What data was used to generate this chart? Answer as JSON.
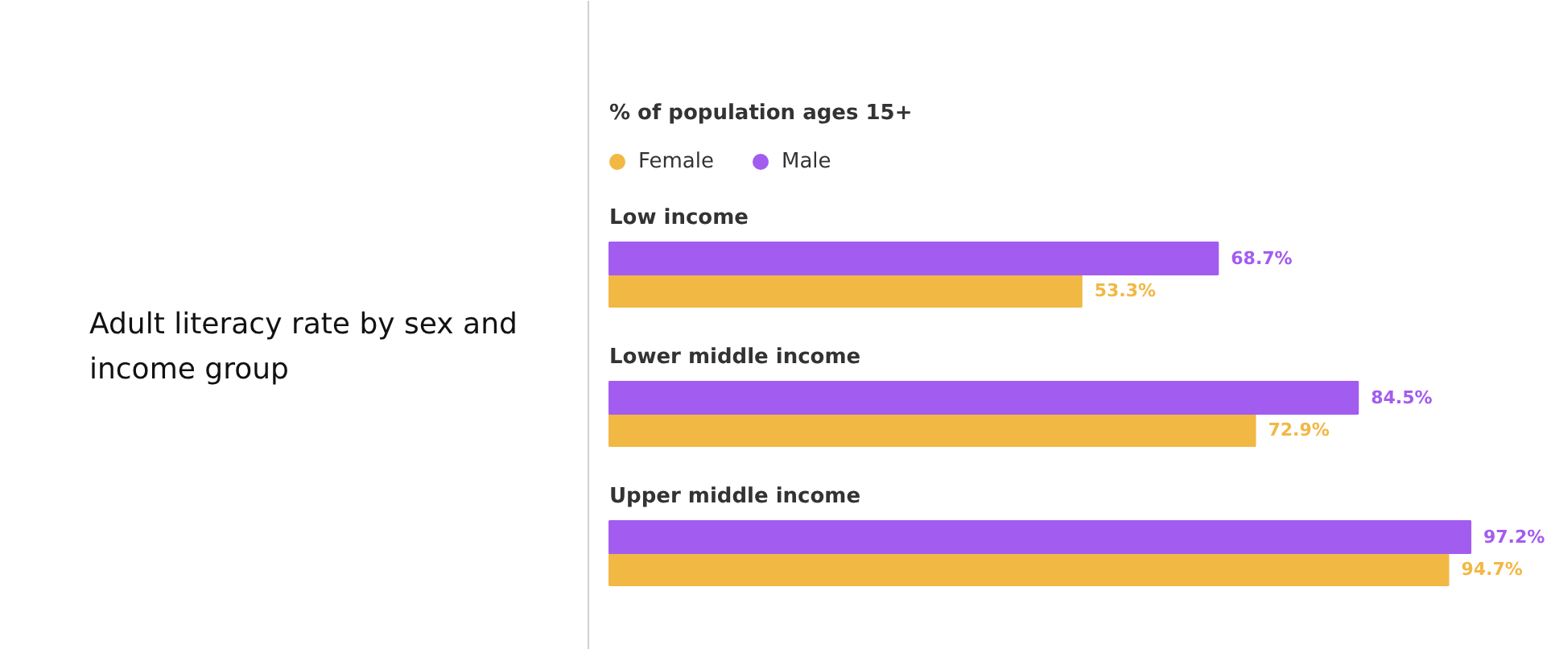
{
  "chart_data": {
    "type": "bar",
    "orientation": "horizontal",
    "title": "Adult literacy rate by sex and income group",
    "subtitle": "% of population ages 15+",
    "categories": [
      "Low income",
      "Lower middle income",
      "Upper middle income"
    ],
    "series": [
      {
        "name": "Female",
        "color": "#f2b844",
        "values": [
          53.3,
          72.9,
          94.7
        ],
        "value_labels": [
          "53.3%",
          "72.9%",
          "94.7%"
        ]
      },
      {
        "name": "Male",
        "color": "#a35cf0",
        "values": [
          68.7,
          84.5,
          97.2
        ],
        "value_labels": [
          "68.7%",
          "84.5%",
          "97.2%"
        ]
      }
    ],
    "legend": "top left"
  }
}
